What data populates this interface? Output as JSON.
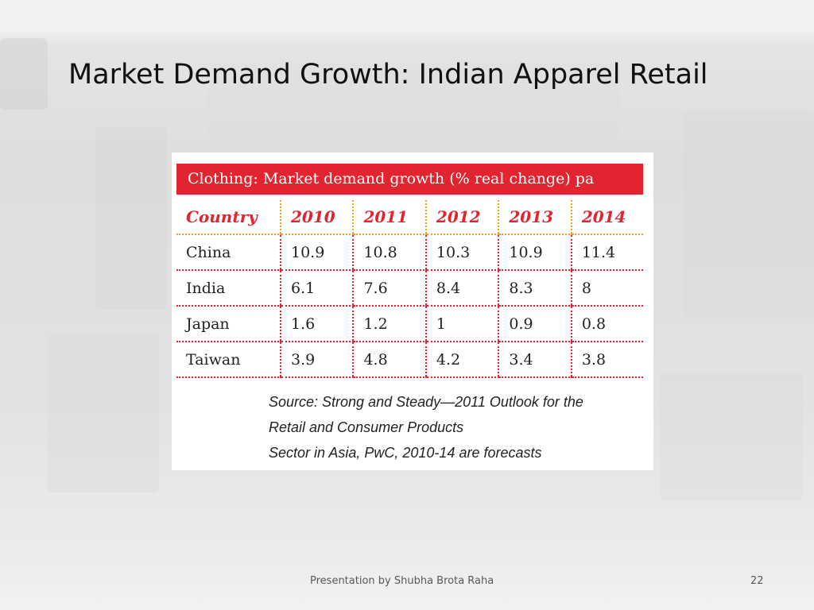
{
  "slide": {
    "title": "Market Demand Growth: Indian Apparel Retail",
    "footer": "Presentation by Shubha Brota Raha",
    "page_number": "22"
  },
  "table": {
    "header": "Clothing: Market demand growth (% real change) pa",
    "columns": [
      "Country",
      "2010",
      "2011",
      "2012",
      "2013",
      "2014"
    ],
    "rows": [
      [
        "China",
        "10.9",
        "10.8",
        "10.3",
        "10.9",
        "11.4"
      ],
      [
        "India",
        "6.1",
        "7.6",
        "8.4",
        "8.3",
        "8"
      ],
      [
        "Japan",
        "1.6",
        "1.2",
        "1",
        "0.9",
        "0.8"
      ],
      [
        "Taiwan",
        "3.9",
        "4.8",
        "4.2",
        "3.4",
        "3.8"
      ]
    ],
    "source_lines": [
      "Source: Strong and Steady—2011 Outlook for the",
      "Retail and Consumer Products",
      "Sector in Asia, PwC, 2010-14 are forecasts"
    ]
  },
  "colors": {
    "accent_red": "#e1242f",
    "dotted_orange": "#f0a020"
  }
}
